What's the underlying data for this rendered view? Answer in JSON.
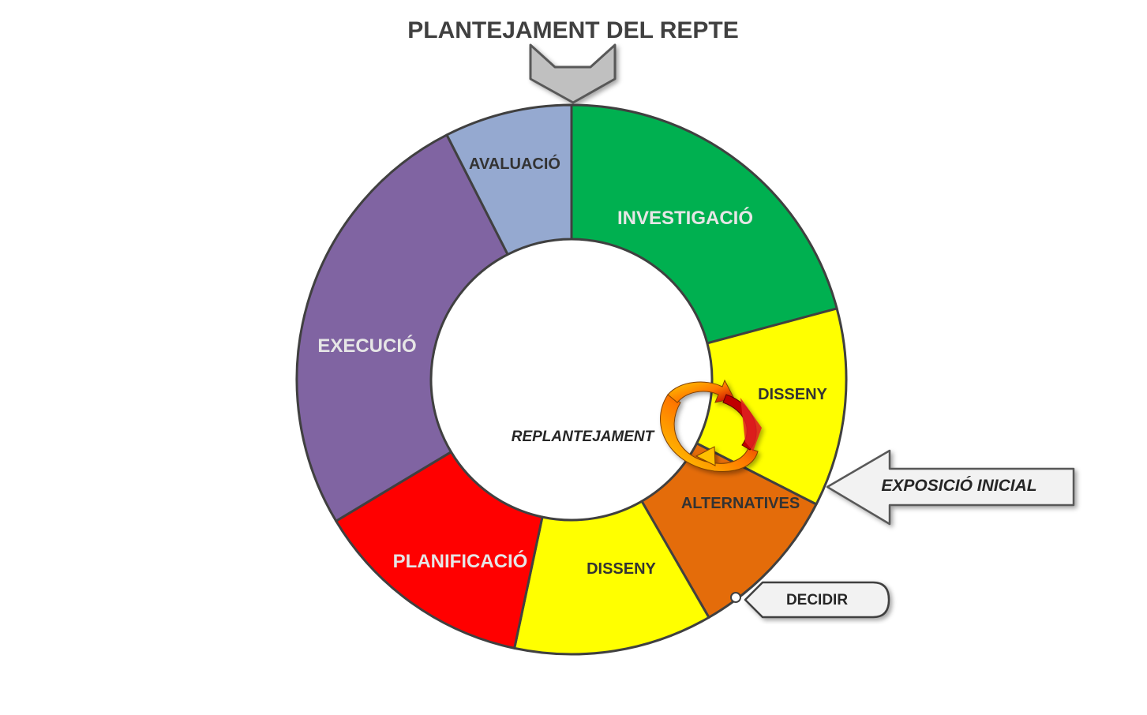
{
  "title": "PLANTEJAMENT DEL REPTE",
  "segments": [
    {
      "key": "investigacio",
      "label": "INVESTIGACIÓ",
      "color": "#00b050",
      "text_color": "#e6e6e6"
    },
    {
      "key": "disseny_a",
      "label": "DISSENY",
      "color": "#ffff00",
      "text_color": "#333333"
    },
    {
      "key": "alternatives",
      "label": "ALTERNATIVES",
      "color": "#e46c0a",
      "text_color": "#333333"
    },
    {
      "key": "disseny_b",
      "label": "DISSENY",
      "color": "#ffff00",
      "text_color": "#333333"
    },
    {
      "key": "planificacio",
      "label": "PLANIFICACIÓ",
      "color": "#ff0000",
      "text_color": "#e6e6e6"
    },
    {
      "key": "execucio",
      "label": "EXECUCIÓ",
      "color": "#8064a2",
      "text_color": "#e6e6e6"
    },
    {
      "key": "avaluacio",
      "label": "AVALUACIÓ",
      "color": "#95a9d0",
      "text_color": "#333333"
    }
  ],
  "center_label": "REPLANTEJAMENT",
  "callouts": {
    "exposicio": "EXPOSICIÓ INICIAL",
    "decidir": "DECIDIR"
  },
  "colors": {
    "outline": "#404040",
    "arrow_fill": "#c0c0c0",
    "callout_fill": "#f2f2f2"
  },
  "icons": {
    "top_chevron": "chevron-down-icon",
    "cycle": "circular-arrows-icon"
  }
}
